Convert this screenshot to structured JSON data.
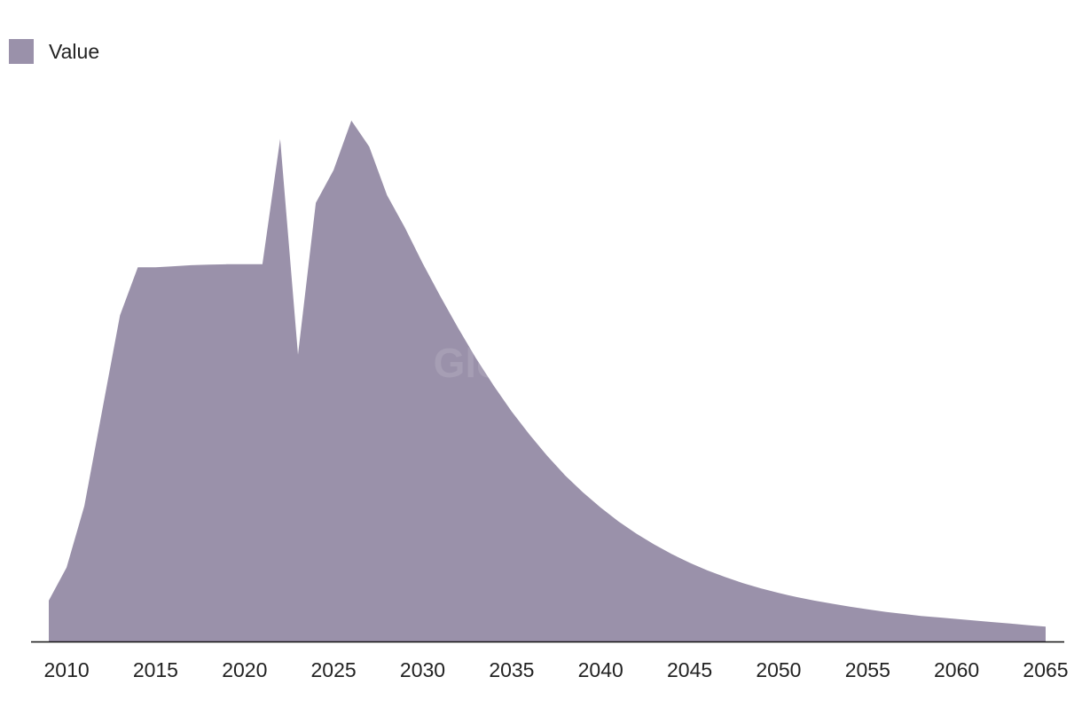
{
  "legend": {
    "label": "Value"
  },
  "watermark": "GlobalData",
  "colors": {
    "area": "#9a91aa",
    "axis": "#111111",
    "text": "#222222"
  },
  "chart_data": {
    "type": "area",
    "title": "",
    "xlabel": "",
    "ylabel": "",
    "grid": false,
    "legend_position": "top-left",
    "series": [
      {
        "name": "Value",
        "x": [
          2009,
          2010,
          2011,
          2012,
          2013,
          2014,
          2015,
          2016,
          2017,
          2018,
          2019,
          2020,
          2021,
          2022,
          2023,
          2024,
          2025,
          2026,
          2027,
          2028,
          2029,
          2030,
          2031,
          2032,
          2033,
          2034,
          2035,
          2036,
          2037,
          2038,
          2039,
          2040,
          2041,
          2042,
          2043,
          2044,
          2045,
          2046,
          2047,
          2048,
          2049,
          2050,
          2051,
          2052,
          2053,
          2054,
          2055,
          2056,
          2057,
          2058,
          2059,
          2060,
          2061,
          2062,
          2063,
          2064,
          2065
        ],
        "values": [
          8.0,
          14.5,
          26.5,
          45.2,
          63.8,
          73.2,
          73.2,
          73.4,
          73.6,
          73.7,
          73.8,
          73.8,
          73.8,
          98.3,
          56.1,
          85.8,
          92.2,
          101.9,
          96.8,
          87.3,
          81.0,
          74.0,
          67.5,
          61.3,
          55.4,
          50.0,
          45.0,
          40.5,
          36.3,
          32.5,
          29.2,
          26.2,
          23.5,
          21.1,
          19.0,
          17.1,
          15.4,
          13.9,
          12.6,
          11.4,
          10.4,
          9.5,
          8.7,
          8.0,
          7.4,
          6.8,
          6.3,
          5.8,
          5.4,
          5.0,
          4.7,
          4.4,
          4.1,
          3.8,
          3.5,
          3.2,
          2.9
        ]
      }
    ],
    "xlim": [
      2009,
      2065
    ],
    "ylim": [
      0,
      105
    ],
    "x_ticks": [
      2010,
      2015,
      2020,
      2025,
      2030,
      2035,
      2040,
      2045,
      2050,
      2055,
      2060,
      2065
    ],
    "y_ticks_shown": false
  }
}
